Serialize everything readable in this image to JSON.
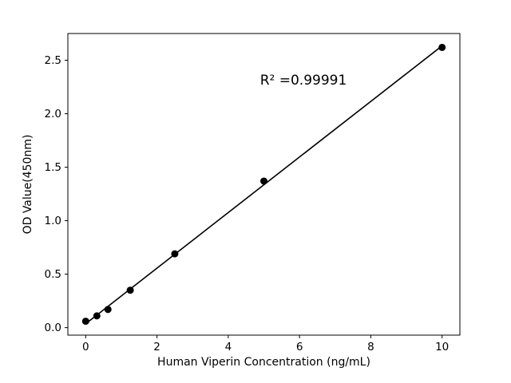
{
  "chart_data": {
    "type": "scatter",
    "x": [
      0,
      0.313,
      0.625,
      1.25,
      2.5,
      5,
      10
    ],
    "y": [
      0.06,
      0.11,
      0.17,
      0.35,
      0.69,
      1.37,
      2.62
    ],
    "fit_line": true,
    "annotation": {
      "text": "R² =0.99991"
    },
    "title": "",
    "xlabel": "Human Viperin Concentration (ng/mL)",
    "ylabel": "OD Value(450nm)",
    "xticks": [
      0,
      2,
      4,
      6,
      8,
      10
    ],
    "ytick_labels": [
      "0.0",
      "0.5",
      "1.0",
      "1.5",
      "2.0",
      "2.5"
    ],
    "xlim": [
      -0.5,
      10.5
    ],
    "ylim": [
      -0.07,
      2.75
    ],
    "marker_color": "#000000",
    "line_color": "#000000",
    "axis_color": "#000000",
    "background": "#ffffff",
    "grid": false,
    "legend": "none"
  }
}
